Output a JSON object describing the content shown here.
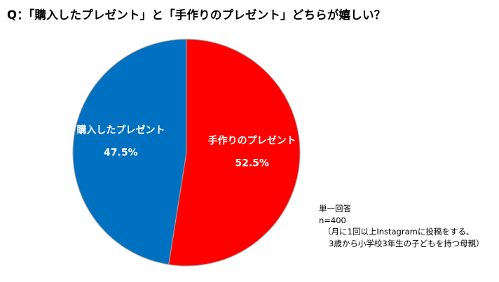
{
  "title": "Q：「購入したプレゼント」と「手作りのプレゼント」どちらが嬉しい？",
  "chart_data": {
    "type": "pie",
    "title": "Q：「購入したプレゼント」と「手作りのプレゼント」どちらが嬉しい？",
    "slices": [
      {
        "label": "手作りのプレゼント",
        "value": 52.5,
        "value_label": "52.5%",
        "color": "#ff0000"
      },
      {
        "label": "購入したプレゼント",
        "value": 47.5,
        "value_label": "47.5%",
        "color": "#0070c0"
      }
    ],
    "start_angle_deg": 0,
    "direction": "clockwise",
    "legend": "none",
    "edge_color": "#a6a6a6"
  },
  "notes": {
    "answer_type": "単一回答",
    "sample": "n=400",
    "population_line1": "（月に1回以上Instagramに投稿をする、",
    "population_line2": "3歳から小学校3年生の子どもを持つ母親）"
  }
}
